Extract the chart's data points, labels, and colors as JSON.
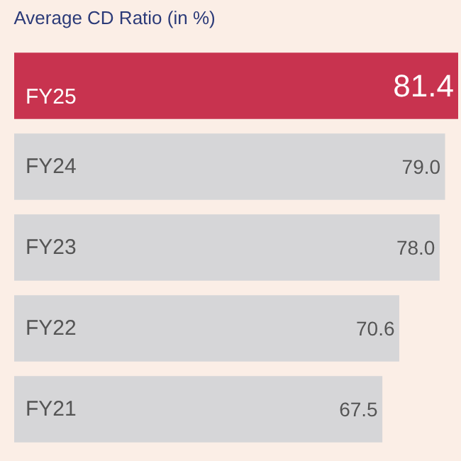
{
  "chart_data": {
    "type": "bar",
    "orientation": "horizontal",
    "title": "Average CD Ratio (in %)",
    "categories": [
      "FY25",
      "FY24",
      "FY23",
      "FY22",
      "FY21"
    ],
    "values": [
      81.4,
      79.0,
      78.0,
      70.6,
      67.5
    ],
    "value_labels": [
      "81.4",
      "79.0",
      "78.0",
      "70.6",
      "67.5"
    ],
    "colors": [
      "#c8334f",
      "#d6d6d8",
      "#d6d6d8",
      "#d6d6d8",
      "#d6d6d8"
    ],
    "legend": false,
    "tick_labels": false
  }
}
